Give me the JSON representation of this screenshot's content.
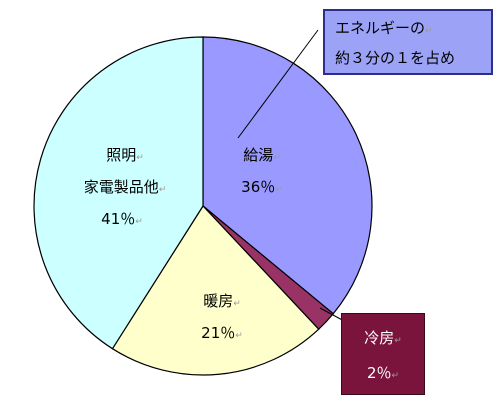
{
  "chart_data": {
    "type": "pie",
    "start_angle_deg": 0,
    "direction": "clockwise",
    "slices": [
      {
        "key": "hot-water",
        "label": "給湯",
        "value": 36,
        "value_label": "36％",
        "color": "#9999ff"
      },
      {
        "key": "cooling",
        "label": "冷房",
        "value": 2,
        "value_label": "2％",
        "color": "#993366"
      },
      {
        "key": "heating",
        "label": "暖房",
        "value": 21,
        "value_label": "21％",
        "color": "#ffffcc"
      },
      {
        "key": "lighting",
        "label_lines": [
          "照明",
          "家電製品他"
        ],
        "value": 41,
        "value_label": "41％",
        "color": "#ccffff"
      }
    ],
    "callouts": {
      "main": {
        "lines": [
          "エネルギーの",
          "約３分の１を占め"
        ],
        "fill": "#9ca3f7",
        "border": "#2b2f8c"
      },
      "cooling": {
        "lines": [
          "冷房",
          "2％"
        ],
        "fill": "#7b143c"
      }
    },
    "paragraph_mark": "↵",
    "line_color": "#000000"
  }
}
